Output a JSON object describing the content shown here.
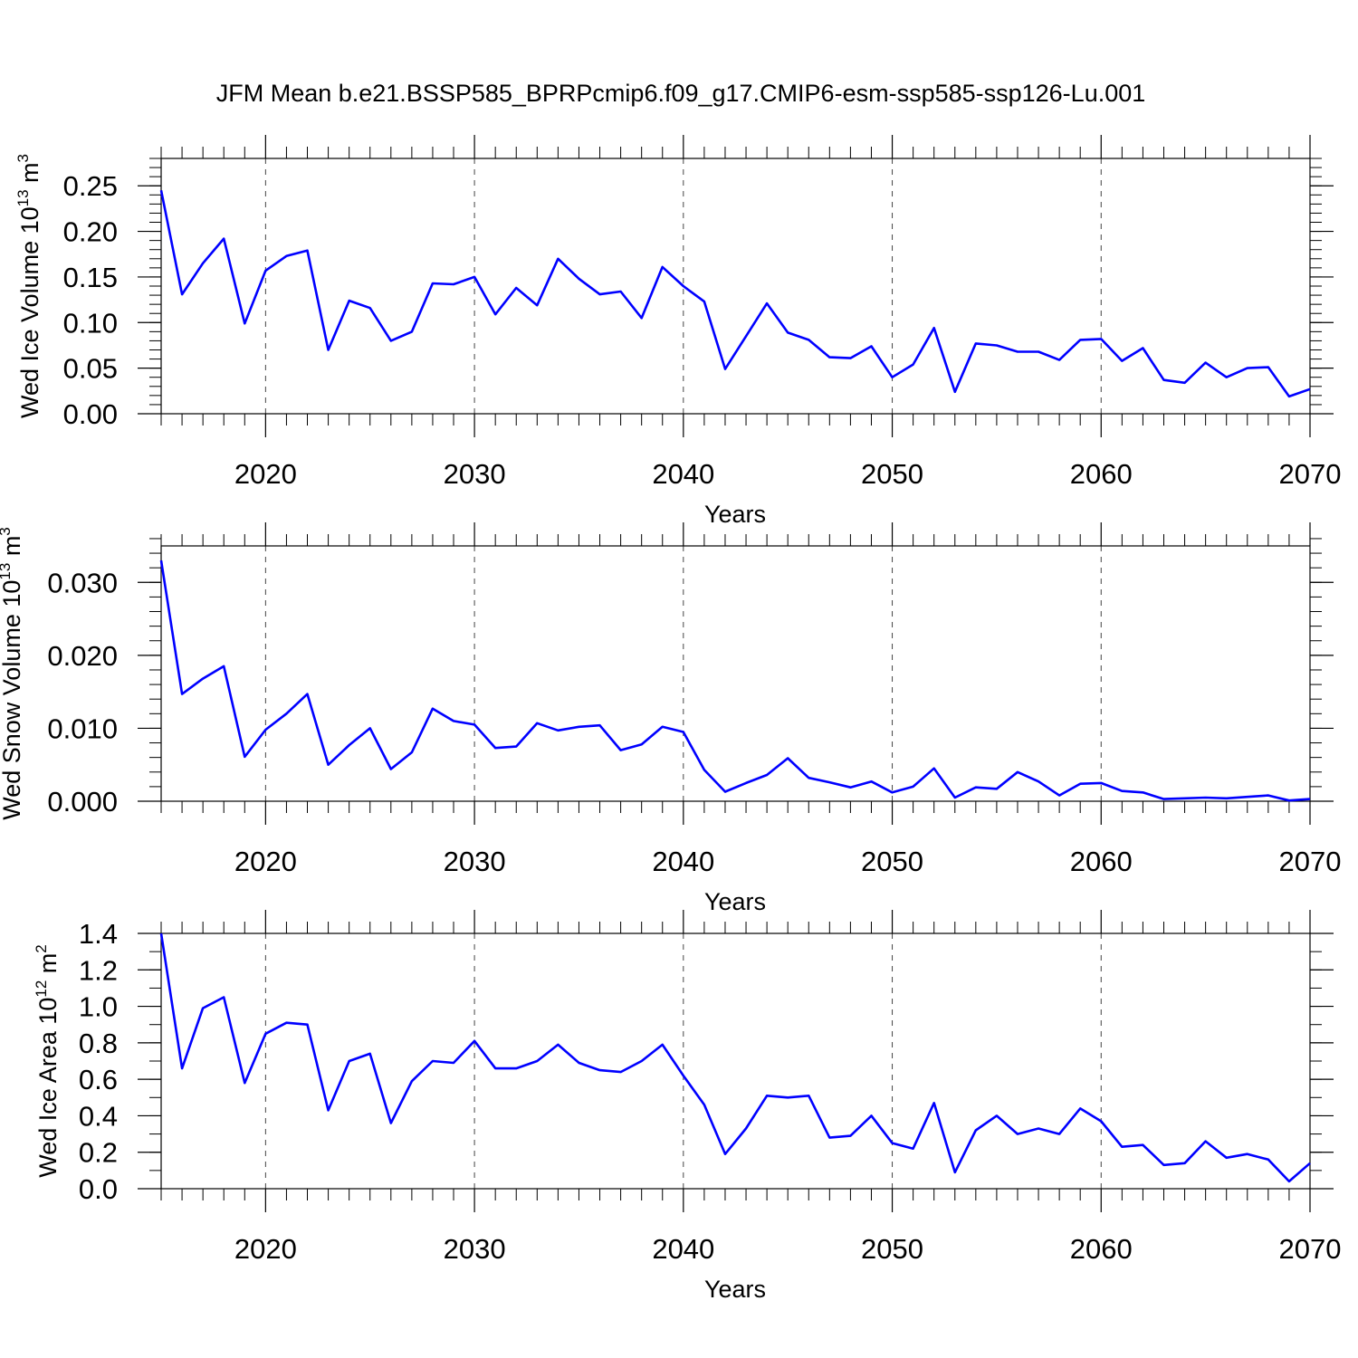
{
  "figure": {
    "title": "JFM Mean b.e21.BSSP585_BPRPcmip6.f09_g17.CMIP6-esm-ssp585-ssp126-Lu.001"
  },
  "chart_data": [
    {
      "type": "line",
      "title": "JFM Mean b.e21.BSSP585_BPRPcmip6.f09_g17.CMIP6-esm-ssp585-ssp126-Lu.001",
      "xlabel": "Years",
      "ylabel_main": "Wed Ice Volume 10",
      "ylabel_exp": "13",
      "ylabel_unit": " m",
      "ylabel_unit_exp": "3",
      "xlim": [
        2015,
        2070
      ],
      "ylim": [
        0,
        0.28
      ],
      "xticks": [
        "2020",
        "2030",
        "2040",
        "2050",
        "2060",
        "2070"
      ],
      "yticks": [
        "0.00",
        "0.05",
        "0.10",
        "0.15",
        "0.20",
        "0.25"
      ],
      "line_color": "#0000ff",
      "grid": "dashed vertical",
      "x": [
        2015,
        2016,
        2017,
        2018,
        2019,
        2020,
        2021,
        2022,
        2023,
        2024,
        2025,
        2026,
        2027,
        2028,
        2029,
        2030,
        2031,
        2032,
        2033,
        2034,
        2035,
        2036,
        2037,
        2038,
        2039,
        2040,
        2041,
        2042,
        2043,
        2044,
        2045,
        2046,
        2047,
        2048,
        2049,
        2050,
        2051,
        2052,
        2053,
        2054,
        2055,
        2056,
        2057,
        2058,
        2059,
        2060,
        2061,
        2062,
        2063,
        2064,
        2065,
        2066,
        2067,
        2068,
        2069,
        2070
      ],
      "values": [
        0.245,
        0.131,
        0.165,
        0.192,
        0.099,
        0.157,
        0.173,
        0.179,
        0.07,
        0.124,
        0.116,
        0.08,
        0.09,
        0.143,
        0.142,
        0.15,
        0.109,
        0.138,
        0.119,
        0.17,
        0.148,
        0.131,
        0.134,
        0.105,
        0.161,
        0.14,
        0.123,
        0.049,
        0.085,
        0.121,
        0.089,
        0.081,
        0.062,
        0.061,
        0.074,
        0.04,
        0.054,
        0.094,
        0.024,
        0.077,
        0.075,
        0.068,
        0.068,
        0.059,
        0.081,
        0.082,
        0.058,
        0.072,
        0.037,
        0.034,
        0.056,
        0.04,
        0.05,
        0.051,
        0.019,
        0.027
      ]
    },
    {
      "type": "line",
      "xlabel": "Years",
      "ylabel_main": "Wed Snow Volume 10",
      "ylabel_exp": "13",
      "ylabel_unit": " m",
      "ylabel_unit_exp": "3",
      "xlim": [
        2015,
        2070
      ],
      "ylim": [
        0,
        0.035
      ],
      "xticks": [
        "2020",
        "2030",
        "2040",
        "2050",
        "2060",
        "2070"
      ],
      "yticks": [
        "0.000",
        "0.010",
        "0.020",
        "0.030"
      ],
      "line_color": "#0000ff",
      "grid": "dashed vertical",
      "x": [
        2015,
        2016,
        2017,
        2018,
        2019,
        2020,
        2021,
        2022,
        2023,
        2024,
        2025,
        2026,
        2027,
        2028,
        2029,
        2030,
        2031,
        2032,
        2033,
        2034,
        2035,
        2036,
        2037,
        2038,
        2039,
        2040,
        2041,
        2042,
        2043,
        2044,
        2045,
        2046,
        2047,
        2048,
        2049,
        2050,
        2051,
        2052,
        2053,
        2054,
        2055,
        2056,
        2057,
        2058,
        2059,
        2060,
        2061,
        2062,
        2063,
        2064,
        2065,
        2066,
        2067,
        2068,
        2069,
        2070
      ],
      "values": [
        0.033,
        0.0147,
        0.0168,
        0.0185,
        0.0061,
        0.0098,
        0.012,
        0.0147,
        0.005,
        0.0077,
        0.01,
        0.0044,
        0.0067,
        0.0127,
        0.011,
        0.0105,
        0.0073,
        0.0075,
        0.0107,
        0.0097,
        0.0102,
        0.0104,
        0.007,
        0.0078,
        0.0102,
        0.0095,
        0.0043,
        0.0013,
        0.0025,
        0.0036,
        0.0059,
        0.0032,
        0.0026,
        0.0019,
        0.0027,
        0.0012,
        0.002,
        0.0045,
        0.0005,
        0.0019,
        0.0017,
        0.004,
        0.0027,
        0.0008,
        0.0024,
        0.0025,
        0.0014,
        0.0012,
        0.0003,
        0.0004,
        0.0005,
        0.0004,
        0.0006,
        0.0008,
        0.0001,
        0.0003
      ]
    },
    {
      "type": "line",
      "xlabel": "Years",
      "ylabel_main": "Wed Ice Area 10",
      "ylabel_exp": "12",
      "ylabel_unit": " m",
      "ylabel_unit_exp": "2",
      "xlim": [
        2015,
        2070
      ],
      "ylim": [
        0,
        1.4
      ],
      "xticks": [
        "2020",
        "2030",
        "2040",
        "2050",
        "2060",
        "2070"
      ],
      "yticks": [
        "0.0",
        "0.2",
        "0.4",
        "0.6",
        "0.8",
        "1.0",
        "1.2",
        "1.4"
      ],
      "line_color": "#0000ff",
      "grid": "dashed vertical",
      "x": [
        2015,
        2016,
        2017,
        2018,
        2019,
        2020,
        2021,
        2022,
        2023,
        2024,
        2025,
        2026,
        2027,
        2028,
        2029,
        2030,
        2031,
        2032,
        2033,
        2034,
        2035,
        2036,
        2037,
        2038,
        2039,
        2040,
        2041,
        2042,
        2043,
        2044,
        2045,
        2046,
        2047,
        2048,
        2049,
        2050,
        2051,
        2052,
        2053,
        2054,
        2055,
        2056,
        2057,
        2058,
        2059,
        2060,
        2061,
        2062,
        2063,
        2064,
        2065,
        2066,
        2067,
        2068,
        2069,
        2070
      ],
      "values": [
        1.4,
        0.66,
        0.99,
        1.05,
        0.58,
        0.85,
        0.91,
        0.9,
        0.43,
        0.7,
        0.74,
        0.36,
        0.59,
        0.7,
        0.69,
        0.81,
        0.66,
        0.66,
        0.7,
        0.79,
        0.69,
        0.65,
        0.64,
        0.7,
        0.79,
        0.62,
        0.46,
        0.19,
        0.33,
        0.51,
        0.5,
        0.51,
        0.28,
        0.29,
        0.4,
        0.25,
        0.22,
        0.47,
        0.09,
        0.32,
        0.4,
        0.3,
        0.33,
        0.3,
        0.44,
        0.37,
        0.23,
        0.24,
        0.13,
        0.14,
        0.26,
        0.17,
        0.19,
        0.16,
        0.04,
        0.14
      ]
    }
  ]
}
